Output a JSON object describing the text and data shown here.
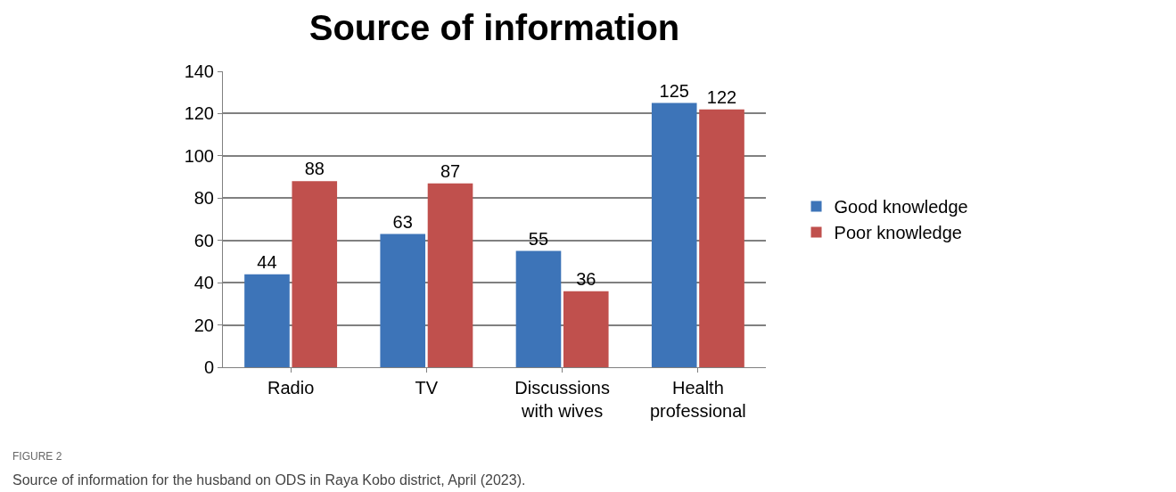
{
  "chart_data": {
    "type": "bar",
    "title": "Source of information",
    "categories": [
      "Radio",
      "TV",
      "Discussions with wives",
      "Health professional"
    ],
    "series": [
      {
        "name": "Good knowledge",
        "color": "#3d74b8",
        "values": [
          44,
          63,
          55,
          125
        ]
      },
      {
        "name": "Poor knowledge",
        "color": "#c0504d",
        "values": [
          88,
          87,
          36,
          122
        ]
      }
    ],
    "ylim": [
      0,
      140
    ],
    "yticks": [
      0,
      20,
      40,
      60,
      80,
      100,
      120,
      140
    ],
    "grid": "y",
    "legend": "right",
    "data_labels": true,
    "annotations": [
      "FIGURE 2",
      "Source of information for the husband on ODS in Raya Kobo district, April (2023)."
    ]
  }
}
